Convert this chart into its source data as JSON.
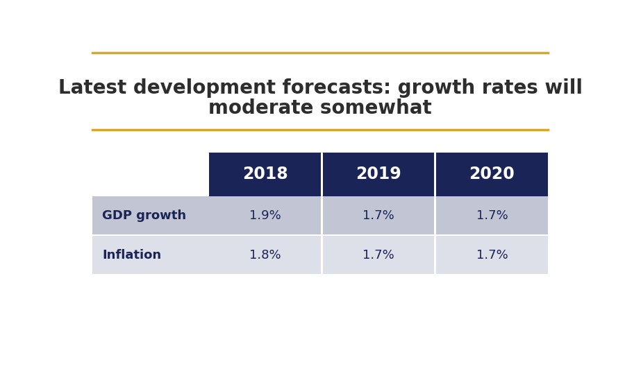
{
  "title_line1": "Latest development forecasts: growth rates will",
  "title_line2": "moderate somewhat",
  "title_color": "#2d2d2d",
  "title_fontsize": 20,
  "accent_color": "#D4A82A",
  "header_bg_color": "#1a2456",
  "header_text_color": "#ffffff",
  "header_fontsize": 17,
  "years": [
    "2018",
    "2019",
    "2020"
  ],
  "row_labels": [
    "GDP growth",
    "Inflation"
  ],
  "row_label_fontsize": 13,
  "row_label_color": "#1a2456",
  "data_values": [
    [
      "1.9%",
      "1.7%",
      "1.7%"
    ],
    [
      "1.8%",
      "1.7%",
      "1.7%"
    ]
  ],
  "data_fontsize": 13,
  "data_color": "#1a2456",
  "row_colors": [
    "#c2c6d4",
    "#dde0e8"
  ],
  "background_color": "#ffffff"
}
